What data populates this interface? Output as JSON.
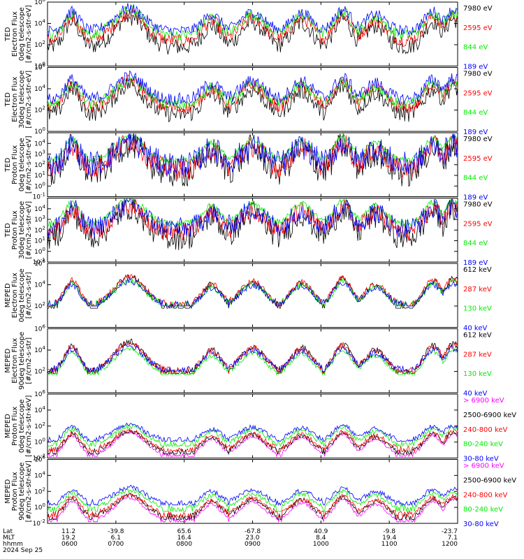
{
  "colors": {
    "blue": "#0000ff",
    "red": "#ff0000",
    "green": "#00ee00",
    "black": "#000000",
    "magenta": "#ff00ff"
  },
  "chart_data": [
    {
      "type": "line",
      "ylabel": [
        "TED",
        "Electron Flux",
        "0deg telescope",
        "[#/cm2-s-str-eV]"
      ],
      "ylim": [
        1,
        1000000
      ],
      "yscale": "log",
      "yticks": [
        {
          "label": "10",
          "exp": "0",
          "log": 0
        },
        {
          "label": "10",
          "exp": "2",
          "log": 2
        },
        {
          "label": "10",
          "exp": "4",
          "log": 4
        },
        {
          "label": "10",
          "exp": "6",
          "log": 6
        }
      ],
      "series": [
        {
          "name": "7980 eV",
          "color": "#000000",
          "base": 1.8,
          "noise": 0.8,
          "floor": 0,
          "flat": false
        },
        {
          "name": "2595 eV",
          "color": "#ff0000",
          "base": 2.4,
          "noise": 0.6,
          "floor": 0,
          "flat": false
        },
        {
          "name": "844 eV",
          "color": "#00ee00",
          "base": 2.9,
          "noise": 0.5,
          "floor": 0,
          "flat": false
        },
        {
          "name": "189 eV",
          "color": "#0000ff",
          "base": 3.3,
          "noise": 0.5,
          "floor": 0,
          "flat": false
        }
      ]
    },
    {
      "type": "line",
      "ylabel": [
        "TED",
        "Electron Flux",
        "30deg telescope",
        "[#/cm2-s-str-eV]"
      ],
      "ylim": [
        1,
        1000000
      ],
      "yscale": "log",
      "yticks": [
        {
          "label": "10",
          "exp": "0",
          "log": 0
        },
        {
          "label": "10",
          "exp": "2",
          "log": 2
        },
        {
          "label": "10",
          "exp": "4",
          "log": 4
        },
        {
          "label": "10",
          "exp": "6",
          "log": 6
        }
      ],
      "series": [
        {
          "name": "7980 eV",
          "color": "#000000",
          "base": 1.6,
          "noise": 0.8,
          "floor": 0,
          "flat": false
        },
        {
          "name": "2595 eV",
          "color": "#ff0000",
          "base": 2.2,
          "noise": 0.6,
          "floor": 0,
          "flat": false
        },
        {
          "name": "844 eV",
          "color": "#00ee00",
          "base": 2.5,
          "noise": 0.5,
          "floor": 0,
          "flat": false
        },
        {
          "name": "189 eV",
          "color": "#0000ff",
          "base": 3.0,
          "noise": 0.6,
          "floor": 0,
          "flat": false
        }
      ]
    },
    {
      "type": "line",
      "ylabel": [
        "TED",
        "Proton Flux",
        "0deg telescope",
        "[#/cm2-s-str-eV]"
      ],
      "ylim": [
        0.1,
        100000
      ],
      "yscale": "log",
      "yticks": [
        {
          "label": "10",
          "exp": "-1",
          "log": -1
        },
        {
          "label": "10",
          "exp": "0",
          "log": 0
        },
        {
          "label": "10",
          "exp": "1",
          "log": 1
        },
        {
          "label": "10",
          "exp": "2",
          "log": 2
        },
        {
          "label": "10",
          "exp": "3",
          "log": 3
        },
        {
          "label": "10",
          "exp": "4",
          "log": 4
        }
      ],
      "series": [
        {
          "name": "7980 eV",
          "color": "#000000",
          "base": 1.2,
          "noise": 1.4,
          "floor": -1,
          "flat": false
        },
        {
          "name": "2595 eV",
          "color": "#ff0000",
          "base": 1.6,
          "noise": 1.0,
          "floor": -1,
          "flat": false
        },
        {
          "name": "844 eV",
          "color": "#00ee00",
          "base": 2.4,
          "noise": 0.3,
          "floor": -1,
          "flat": false
        },
        {
          "name": "189 eV",
          "color": "#0000ff",
          "base": 2.0,
          "noise": 1.2,
          "floor": -1,
          "flat": false
        }
      ]
    },
    {
      "type": "line",
      "ylabel": [
        "TED",
        "Proton Flux",
        "30deg telescope",
        "[#/cm2-s-str-eV]"
      ],
      "ylim": [
        0.1,
        100000
      ],
      "yscale": "log",
      "yticks": [
        {
          "label": "10",
          "exp": "-1",
          "log": -1
        },
        {
          "label": "10",
          "exp": "0",
          "log": 0
        },
        {
          "label": "10",
          "exp": "1",
          "log": 1
        },
        {
          "label": "10",
          "exp": "2",
          "log": 2
        },
        {
          "label": "10",
          "exp": "3",
          "log": 3
        },
        {
          "label": "10",
          "exp": "4",
          "log": 4
        }
      ],
      "series": [
        {
          "name": "7980 eV",
          "color": "#000000",
          "base": 1.3,
          "noise": 1.2,
          "floor": -1,
          "flat": false
        },
        {
          "name": "2595 eV",
          "color": "#ff0000",
          "base": 1.8,
          "noise": 0.9,
          "floor": -1,
          "flat": false
        },
        {
          "name": "844 eV",
          "color": "#00ee00",
          "base": 2.6,
          "noise": 0.3,
          "floor": -1,
          "flat": false
        },
        {
          "name": "189 eV",
          "color": "#0000ff",
          "base": 2.2,
          "noise": 1.0,
          "floor": -1,
          "flat": false
        }
      ]
    },
    {
      "type": "line",
      "ylabel": [
        "MEPED",
        "Electron Flux",
        "0deg telescope",
        "[#/cm2-s-str]"
      ],
      "ylim": [
        1,
        1000000
      ],
      "yscale": "log",
      "yticks": [
        {
          "label": "10",
          "exp": "2",
          "log": 2
        },
        {
          "label": "10",
          "exp": "4",
          "log": 4
        },
        {
          "label": "10",
          "exp": "6",
          "log": 6
        }
      ],
      "series": [
        {
          "name": "612 keV",
          "color": "#000000",
          "base": 2.0,
          "noise": 0.3,
          "floor": 1.8,
          "flat": true
        },
        {
          "name": "287 keV",
          "color": "#ff0000",
          "base": 2.2,
          "noise": 0.3,
          "floor": 2.0,
          "flat": true
        },
        {
          "name": "130 keV",
          "color": "#00ee00",
          "base": 2.1,
          "noise": 0.3,
          "floor": 2.0,
          "flat": true
        },
        {
          "name": "40 keV",
          "color": "#0000ff",
          "base": 2.2,
          "noise": 0.3,
          "floor": 2.0,
          "flat": true
        }
      ]
    },
    {
      "type": "line",
      "ylabel": [
        "MEPED",
        "Electron Flux",
        "90deg telescope",
        "[#/cm2-s-str]"
      ],
      "ylim": [
        1,
        1000000
      ],
      "yscale": "log",
      "yticks": [
        {
          "label": "10",
          "exp": "2",
          "log": 2
        },
        {
          "label": "10",
          "exp": "4",
          "log": 4
        },
        {
          "label": "10",
          "exp": "6",
          "log": 6
        }
      ],
      "series": [
        {
          "name": "612 keV",
          "color": "#000000",
          "base": 2.0,
          "noise": 0.3,
          "floor": 1.8,
          "flat": true
        },
        {
          "name": "287 keV",
          "color": "#ff0000",
          "base": 2.1,
          "noise": 0.3,
          "floor": 1.8,
          "flat": true
        },
        {
          "name": "130 keV",
          "color": "#00ee00",
          "base": 1.8,
          "noise": 0.2,
          "floor": 1.7,
          "flat": true
        },
        {
          "name": "40 keV",
          "color": "#0000ff",
          "base": 2.2,
          "noise": 0.3,
          "floor": 2.0,
          "flat": true
        }
      ]
    },
    {
      "type": "line",
      "ylabel": [
        "MEPED",
        "Proton Flux",
        "0deg telescope",
        "[#/cm2-s-str-keV]"
      ],
      "ylim": [
        0.01,
        1000000
      ],
      "yscale": "log",
      "yticks": [
        {
          "label": "10",
          "exp": "-2",
          "log": -2
        },
        {
          "label": "10",
          "exp": "0",
          "log": 0
        },
        {
          "label": "10",
          "exp": "2",
          "log": 2
        },
        {
          "label": "10",
          "exp": "4",
          "log": 4
        },
        {
          "label": "10",
          "exp": "6",
          "log": 6
        }
      ],
      "series": [
        {
          "name": "> 6900 keV",
          "color": "#ff00ff",
          "base": -1.6,
          "noise": 0.2,
          "floor": -1.8,
          "flat": true
        },
        {
          "name": "2500-6900 keV",
          "color": "#000000",
          "base": -1.2,
          "noise": 0.3,
          "floor": -1.5,
          "flat": true
        },
        {
          "name": "240-800 keV",
          "color": "#ff0000",
          "base": -0.9,
          "noise": 0.3,
          "floor": -1.2,
          "flat": true
        },
        {
          "name": "80-240 keV",
          "color": "#00ee00",
          "base": -0.2,
          "noise": 0.3,
          "floor": -0.5,
          "flat": true
        },
        {
          "name": "30-80 keV",
          "color": "#0000ff",
          "base": 0.3,
          "noise": 0.3,
          "floor": 0.1,
          "flat": true
        }
      ]
    },
    {
      "type": "line",
      "ylabel": [
        "MEPED",
        "Proton Flux",
        "90deg telescope",
        "[#/cm2-s-str-keV]"
      ],
      "ylim": [
        0.01,
        1000000
      ],
      "yscale": "log",
      "yticks": [
        {
          "label": "10",
          "exp": "-2",
          "log": -2
        },
        {
          "label": "10",
          "exp": "0",
          "log": 0
        },
        {
          "label": "10",
          "exp": "2",
          "log": 2
        },
        {
          "label": "10",
          "exp": "4",
          "log": 4
        },
        {
          "label": "10",
          "exp": "6",
          "log": 6
        }
      ],
      "series": [
        {
          "name": "> 6900 keV",
          "color": "#ff00ff",
          "base": -1.6,
          "noise": 0.2,
          "floor": -1.8,
          "flat": true
        },
        {
          "name": "2500-6900 keV",
          "color": "#000000",
          "base": -1.1,
          "noise": 0.3,
          "floor": -1.5,
          "flat": true
        },
        {
          "name": "240-800 keV",
          "color": "#ff0000",
          "base": -0.8,
          "noise": 0.3,
          "floor": -1.2,
          "flat": true
        },
        {
          "name": "80-240 keV",
          "color": "#00ee00",
          "base": 0.0,
          "noise": 0.3,
          "floor": -0.5,
          "flat": true
        },
        {
          "name": "30-80 keV",
          "color": "#0000ff",
          "base": 0.6,
          "noise": 0.3,
          "floor": 0.3,
          "flat": true
        }
      ]
    }
  ],
  "xaxis": {
    "row_labels": [
      "Lat",
      "MLT",
      "hhmm",
      "2024 Sep 25"
    ],
    "ticks": [
      {
        "lat": "11.2",
        "mlt": "19.2",
        "hhmm": "0600"
      },
      {
        "lat": "-39.8",
        "mlt": "6.1",
        "hhmm": "0700"
      },
      {
        "lat": "65.6",
        "mlt": "16.4",
        "hhmm": "0800"
      },
      {
        "lat": "-67.8",
        "mlt": "23.0",
        "hhmm": "0900"
      },
      {
        "lat": "40.9",
        "mlt": "8.4",
        "hhmm": "1000"
      },
      {
        "lat": "-9.8",
        "mlt": "19.4",
        "hhmm": "1100"
      },
      {
        "lat": "-23.7",
        "mlt": "7.1",
        "hhmm": "1200"
      }
    ]
  }
}
